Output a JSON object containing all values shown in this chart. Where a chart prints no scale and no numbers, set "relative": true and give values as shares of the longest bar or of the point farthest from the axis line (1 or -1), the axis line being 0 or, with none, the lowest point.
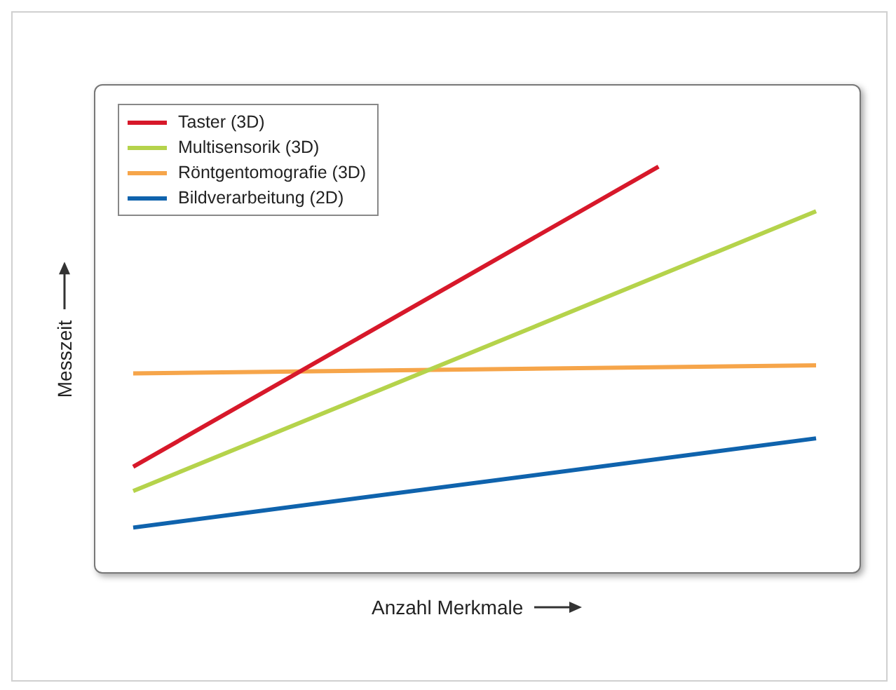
{
  "chart_data": {
    "type": "line",
    "xlabel": "Anzahl Merkmale",
    "ylabel": "Messzeit",
    "relative": true,
    "legend": "top left",
    "marker": "none",
    "line_style": "solid",
    "categories": [
      null,
      null,
      null,
      null,
      null,
      null,
      null,
      null,
      null,
      null,
      null,
      null,
      null,
      null
    ],
    "series": [
      {
        "name": "Taster (3D)",
        "color": "#d7182a",
        "values": [
          0.26,
          null,
          null,
          null,
          null,
          null,
          null,
          null,
          null,
          null,
          1,
          null,
          null,
          null
        ]
      },
      {
        "name": "Multisensorik (3D)",
        "color": "#b5d34b",
        "values": [
          0.2,
          null,
          null,
          null,
          null,
          null,
          null,
          null,
          null,
          null,
          null,
          null,
          null,
          0.89
        ]
      },
      {
        "name": "Röntgentomografie (3D)",
        "color": "#f6a54a",
        "values": [
          0.49,
          null,
          null,
          null,
          null,
          null,
          null,
          null,
          null,
          null,
          null,
          null,
          null,
          0.51
        ]
      },
      {
        "name": "Bildverarbeitung (2D)",
        "color": "#0f63ad",
        "values": [
          0.11,
          null,
          null,
          null,
          null,
          null,
          null,
          null,
          null,
          null,
          null,
          null,
          null,
          0.33
        ]
      }
    ]
  }
}
